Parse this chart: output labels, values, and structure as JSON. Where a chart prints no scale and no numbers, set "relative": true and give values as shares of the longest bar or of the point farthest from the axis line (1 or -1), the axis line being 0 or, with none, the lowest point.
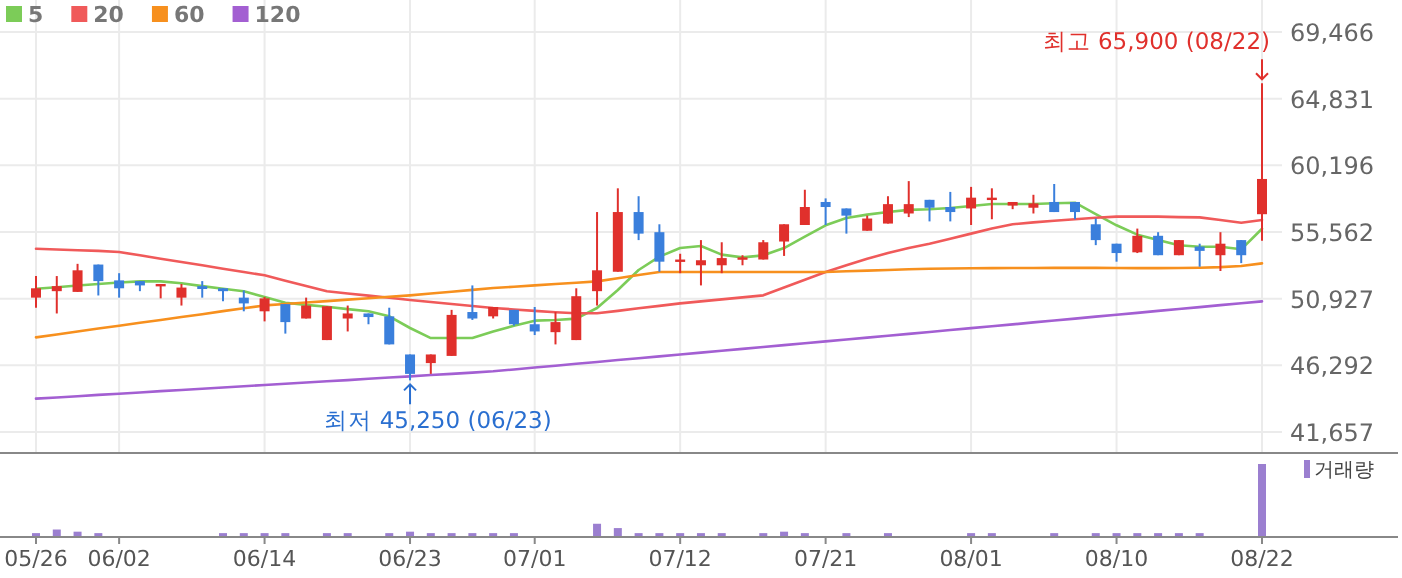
{
  "chart_data": [
    {
      "type": "candlestick",
      "categories": [
        "05/26",
        null,
        null,
        null,
        "06/02",
        null,
        null,
        null,
        null,
        null,
        null,
        "06/14",
        null,
        null,
        null,
        null,
        null,
        null,
        "06/23",
        null,
        null,
        null,
        null,
        null,
        "07/01",
        null,
        null,
        null,
        null,
        null,
        null,
        "07/12",
        null,
        null,
        null,
        null,
        null,
        null,
        "07/21",
        null,
        null,
        null,
        null,
        null,
        null,
        "08/01",
        null,
        null,
        null,
        null,
        null,
        null,
        "08/10",
        null,
        null,
        null,
        null,
        null,
        null,
        "08/22"
      ],
      "ohlc": [
        [
          51000,
          52500,
          50300,
          51650
        ],
        [
          51450,
          52500,
          49900,
          51800
        ],
        [
          51400,
          53350,
          51400,
          52900
        ],
        [
          53300,
          53300,
          51150,
          52150
        ],
        [
          52200,
          52700,
          51000,
          51650
        ],
        [
          52150,
          52150,
          51450,
          51850
        ],
        [
          51850,
          51950,
          50950,
          51950
        ],
        [
          51000,
          51950,
          50450,
          51700
        ],
        [
          51800,
          52150,
          51000,
          51600
        ],
        [
          51650,
          51650,
          50750,
          51450
        ],
        [
          51000,
          51500,
          50050,
          50600
        ],
        [
          50050,
          51050,
          49350,
          50950
        ],
        [
          50550,
          50550,
          48500,
          49300
        ],
        [
          49550,
          51000,
          49550,
          50450
        ],
        [
          48050,
          50400,
          48050,
          50400
        ],
        [
          49550,
          50450,
          48650,
          49900
        ],
        [
          49900,
          49900,
          49150,
          49650
        ],
        [
          49700,
          50300,
          47750,
          47750
        ],
        [
          47050,
          47050,
          45250,
          45700
        ],
        [
          46450,
          47050,
          45700,
          47050
        ],
        [
          46950,
          50150,
          46950,
          49800
        ],
        [
          50000,
          51850,
          49450,
          49550
        ],
        [
          49700,
          50350,
          49550,
          50350
        ],
        [
          50150,
          50150,
          49050,
          49150
        ],
        [
          49150,
          50350,
          48400,
          48650
        ],
        [
          48600,
          50000,
          47750,
          49300
        ],
        [
          48050,
          51650,
          48050,
          51100
        ],
        [
          51450,
          56950,
          50450,
          52900
        ],
        [
          52800,
          58600,
          52800,
          56950
        ],
        [
          56950,
          58050,
          55000,
          55450
        ],
        [
          55550,
          56100,
          52800,
          53500
        ],
        [
          53550,
          54050,
          52700,
          53650
        ],
        [
          53250,
          55000,
          51850,
          53600
        ],
        [
          53250,
          54850,
          52700,
          53750
        ],
        [
          53650,
          53950,
          53250,
          53800
        ],
        [
          53650,
          55000,
          53650,
          54850
        ],
        [
          54900,
          56100,
          53900,
          56100
        ],
        [
          56050,
          58500,
          56050,
          57300
        ],
        [
          57650,
          57900,
          56050,
          57300
        ],
        [
          57200,
          57200,
          55450,
          56700
        ],
        [
          55650,
          56700,
          55650,
          56500
        ],
        [
          56150,
          58050,
          56150,
          57500
        ],
        [
          56850,
          59100,
          56600,
          57500
        ],
        [
          57800,
          57800,
          56300,
          57250
        ],
        [
          57300,
          58350,
          56300,
          56950
        ],
        [
          57200,
          58700,
          56050,
          57950
        ],
        [
          57900,
          58600,
          56450,
          57950
        ],
        [
          57400,
          57650,
          57150,
          57650
        ],
        [
          57250,
          58150,
          56850,
          57550
        ],
        [
          57650,
          58900,
          56950,
          56950
        ],
        [
          57650,
          57650,
          56450,
          56950
        ],
        [
          56100,
          56500,
          54650,
          55000
        ],
        [
          54750,
          54750,
          53500,
          54100
        ],
        [
          54150,
          55800,
          54100,
          55300
        ],
        [
          55300,
          55550,
          53950,
          53950
        ],
        [
          53950,
          55000,
          53950,
          55000
        ],
        [
          54550,
          54750,
          53150,
          54250
        ],
        [
          53950,
          55550,
          52850,
          54750
        ],
        [
          55000,
          55000,
          53400,
          53950
        ],
        [
          56800,
          65900,
          54950,
          59250
        ]
      ],
      "colors": [
        "#e0302c",
        "#e0302c",
        "#e0302c",
        "#3a7fdc",
        "#3a7fdc",
        "#3a7fdc",
        "#e0302c",
        "#e0302c",
        "#3a7fdc",
        "#3a7fdc",
        "#3a7fdc",
        "#e0302c",
        "#3a7fdc",
        "#e0302c",
        "#e0302c",
        "#e0302c",
        "#3a7fdc",
        "#3a7fdc",
        "#3a7fdc",
        "#e0302c",
        "#e0302c",
        "#3a7fdc",
        "#e0302c",
        "#3a7fdc",
        "#3a7fdc",
        "#e0302c",
        "#e0302c",
        "#e0302c",
        "#e0302c",
        "#3a7fdc",
        "#3a7fdc",
        "#e0302c",
        "#e0302c",
        "#e0302c",
        "#e0302c",
        "#e0302c",
        "#e0302c",
        "#e0302c",
        "#3a7fdc",
        "#3a7fdc",
        "#e0302c",
        "#e0302c",
        "#e0302c",
        "#3a7fdc",
        "#3a7fdc",
        "#e0302c",
        "#e0302c",
        "#e0302c",
        "#e0302c",
        "#3a7fdc",
        "#3a7fdc",
        "#3a7fdc",
        "#3a7fdc",
        "#e0302c",
        "#3a7fdc",
        "#e0302c",
        "#3a7fdc",
        "#e0302c",
        "#3a7fdc",
        "#e0302c"
      ],
      "series": [
        {
          "name": "5",
          "type": "line",
          "color": "#7ccc58",
          "values": [
            51620,
            51720,
            51850,
            51950,
            52050,
            52130,
            52130,
            52000,
            51800,
            51620,
            51440,
            51050,
            50650,
            50500,
            50370,
            50200,
            50050,
            49700,
            48890,
            48190,
            48190,
            48190,
            48650,
            49050,
            49400,
            49450,
            49540,
            50280,
            51530,
            52920,
            53850,
            54450,
            54590,
            53990,
            53800,
            53940,
            54450,
            55240,
            56030,
            56540,
            56770,
            56950,
            57100,
            57140,
            57230,
            57370,
            57510,
            57510,
            57510,
            57560,
            57600,
            56800,
            56030,
            55380,
            55010,
            54640,
            54540,
            54540,
            54360,
            55790
          ]
        },
        {
          "name": "20",
          "type": "line",
          "color": "#f05a5a",
          "values": [
            54400,
            54350,
            54300,
            54250,
            54170,
            53940,
            53710,
            53480,
            53250,
            53010,
            52780,
            52550,
            52180,
            51810,
            51440,
            51290,
            51140,
            50990,
            50840,
            50700,
            50560,
            50420,
            50280,
            50180,
            50080,
            49990,
            49910,
            49910,
            50080,
            50260,
            50430,
            50600,
            50740,
            50880,
            51020,
            51160,
            51700,
            52240,
            52780,
            53250,
            53700,
            54100,
            54450,
            54750,
            55100,
            55450,
            55800,
            56100,
            56230,
            56350,
            56450,
            56550,
            56630,
            56630,
            56630,
            56600,
            56580,
            56400,
            56210,
            56400
          ]
        },
        {
          "name": "60",
          "type": "line",
          "color": "#f7901e",
          "values": [
            48240,
            48440,
            48650,
            48850,
            49050,
            49250,
            49450,
            49650,
            49850,
            50060,
            50260,
            50460,
            50560,
            50660,
            50760,
            50860,
            50960,
            51060,
            51160,
            51290,
            51410,
            51540,
            51670,
            51760,
            51850,
            51950,
            52040,
            52130,
            52350,
            52570,
            52780,
            52780,
            52780,
            52780,
            52780,
            52780,
            52780,
            52780,
            52780,
            52830,
            52880,
            52920,
            52970,
            53010,
            53030,
            53040,
            53050,
            53060,
            53060,
            53070,
            53070,
            53070,
            53060,
            53050,
            53050,
            53060,
            53080,
            53120,
            53200,
            53380
          ]
        },
        {
          "name": "120",
          "type": "line",
          "color": "#a35fd2",
          "values": [
            43980,
            44060,
            44150,
            44240,
            44320,
            44410,
            44500,
            44580,
            44670,
            44750,
            44840,
            44930,
            45010,
            45100,
            45190,
            45270,
            45360,
            45450,
            45530,
            45620,
            45700,
            45790,
            45880,
            46010,
            46140,
            46270,
            46400,
            46530,
            46660,
            46790,
            46920,
            47050,
            47180,
            47310,
            47440,
            47570,
            47700,
            47830,
            47960,
            48090,
            48220,
            48350,
            48480,
            48610,
            48750,
            48880,
            49010,
            49140,
            49280,
            49410,
            49540,
            49680,
            49810,
            49940,
            50080,
            50210,
            50340,
            50480,
            50610,
            50740
          ]
        }
      ],
      "ylim": [
        40270,
        69466
      ],
      "yticks": [
        {
          "value": 41657,
          "label": "41,657"
        },
        {
          "value": 46292,
          "label": "46,292"
        },
        {
          "value": 50927,
          "label": "50,927"
        },
        {
          "value": 55562,
          "label": "55,562"
        },
        {
          "value": 60196,
          "label": "60,196"
        },
        {
          "value": 64831,
          "label": "64,831"
        },
        {
          "value": 69466,
          "label": "69,466"
        }
      ],
      "tick_labels": "y",
      "grid": true,
      "legend": "top left",
      "annotations": [
        "최고 65,900 (08/22)",
        {
          "text": "최저 45,250 (06/23)",
          "x": "06/23",
          "y": 45250
        }
      ]
    },
    {
      "type": "bar",
      "categories": [
        "05/26",
        null,
        null,
        null,
        "06/02",
        null,
        null,
        null,
        null,
        null,
        null,
        "06/14",
        null,
        null,
        null,
        null,
        null,
        null,
        "06/23",
        null,
        null,
        null,
        null,
        null,
        "07/01",
        null,
        null,
        null,
        null,
        null,
        null,
        "07/12",
        null,
        null,
        null,
        null,
        null,
        null,
        "07/21",
        null,
        null,
        null,
        null,
        null,
        null,
        "08/01",
        null,
        null,
        null,
        null,
        null,
        null,
        "08/10",
        null,
        null,
        null,
        null,
        null,
        null,
        "08/22"
      ],
      "series": [
        {
          "name": "거래량",
          "color": "#9b7fd0",
          "values": [
            0.04,
            0.09,
            0.06,
            0.04,
            0,
            0,
            0,
            0,
            0,
            0.04,
            0.04,
            0.04,
            0.04,
            0,
            0.04,
            0.04,
            0,
            0.04,
            0.06,
            0.04,
            0.04,
            0.04,
            0.04,
            0.04,
            0,
            0,
            0,
            0.17,
            0.11,
            0.04,
            0.04,
            0.04,
            0.04,
            0.04,
            0,
            0.04,
            0.06,
            0.04,
            0,
            0.04,
            0,
            0.04,
            0,
            0,
            0,
            0.04,
            0.04,
            0,
            0,
            0.04,
            0,
            0.04,
            0.04,
            0.04,
            0.04,
            0.04,
            0.04,
            0,
            0,
            1
          ]
        }
      ],
      "relative": true,
      "tick_labels": "x",
      "legend": "right"
    }
  ]
}
